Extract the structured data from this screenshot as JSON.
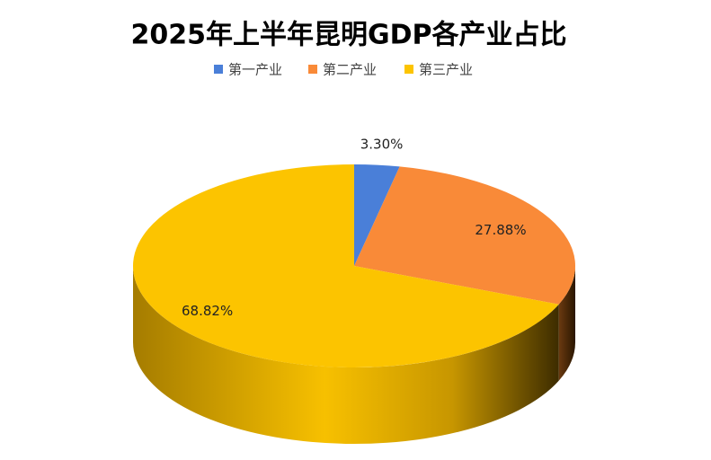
{
  "chart_data": {
    "type": "pie3d",
    "title": "2025年上半年昆明GDP各产业占比",
    "categories": [
      "第一产业",
      "第二产业",
      "第三产业"
    ],
    "values": [
      3.3,
      27.88,
      68.82
    ],
    "value_labels": [
      "3.30%",
      "27.88%",
      "68.82%"
    ],
    "colors": [
      "#4a7fd8",
      "#f98a38",
      "#fcc400"
    ],
    "legend": "top"
  }
}
